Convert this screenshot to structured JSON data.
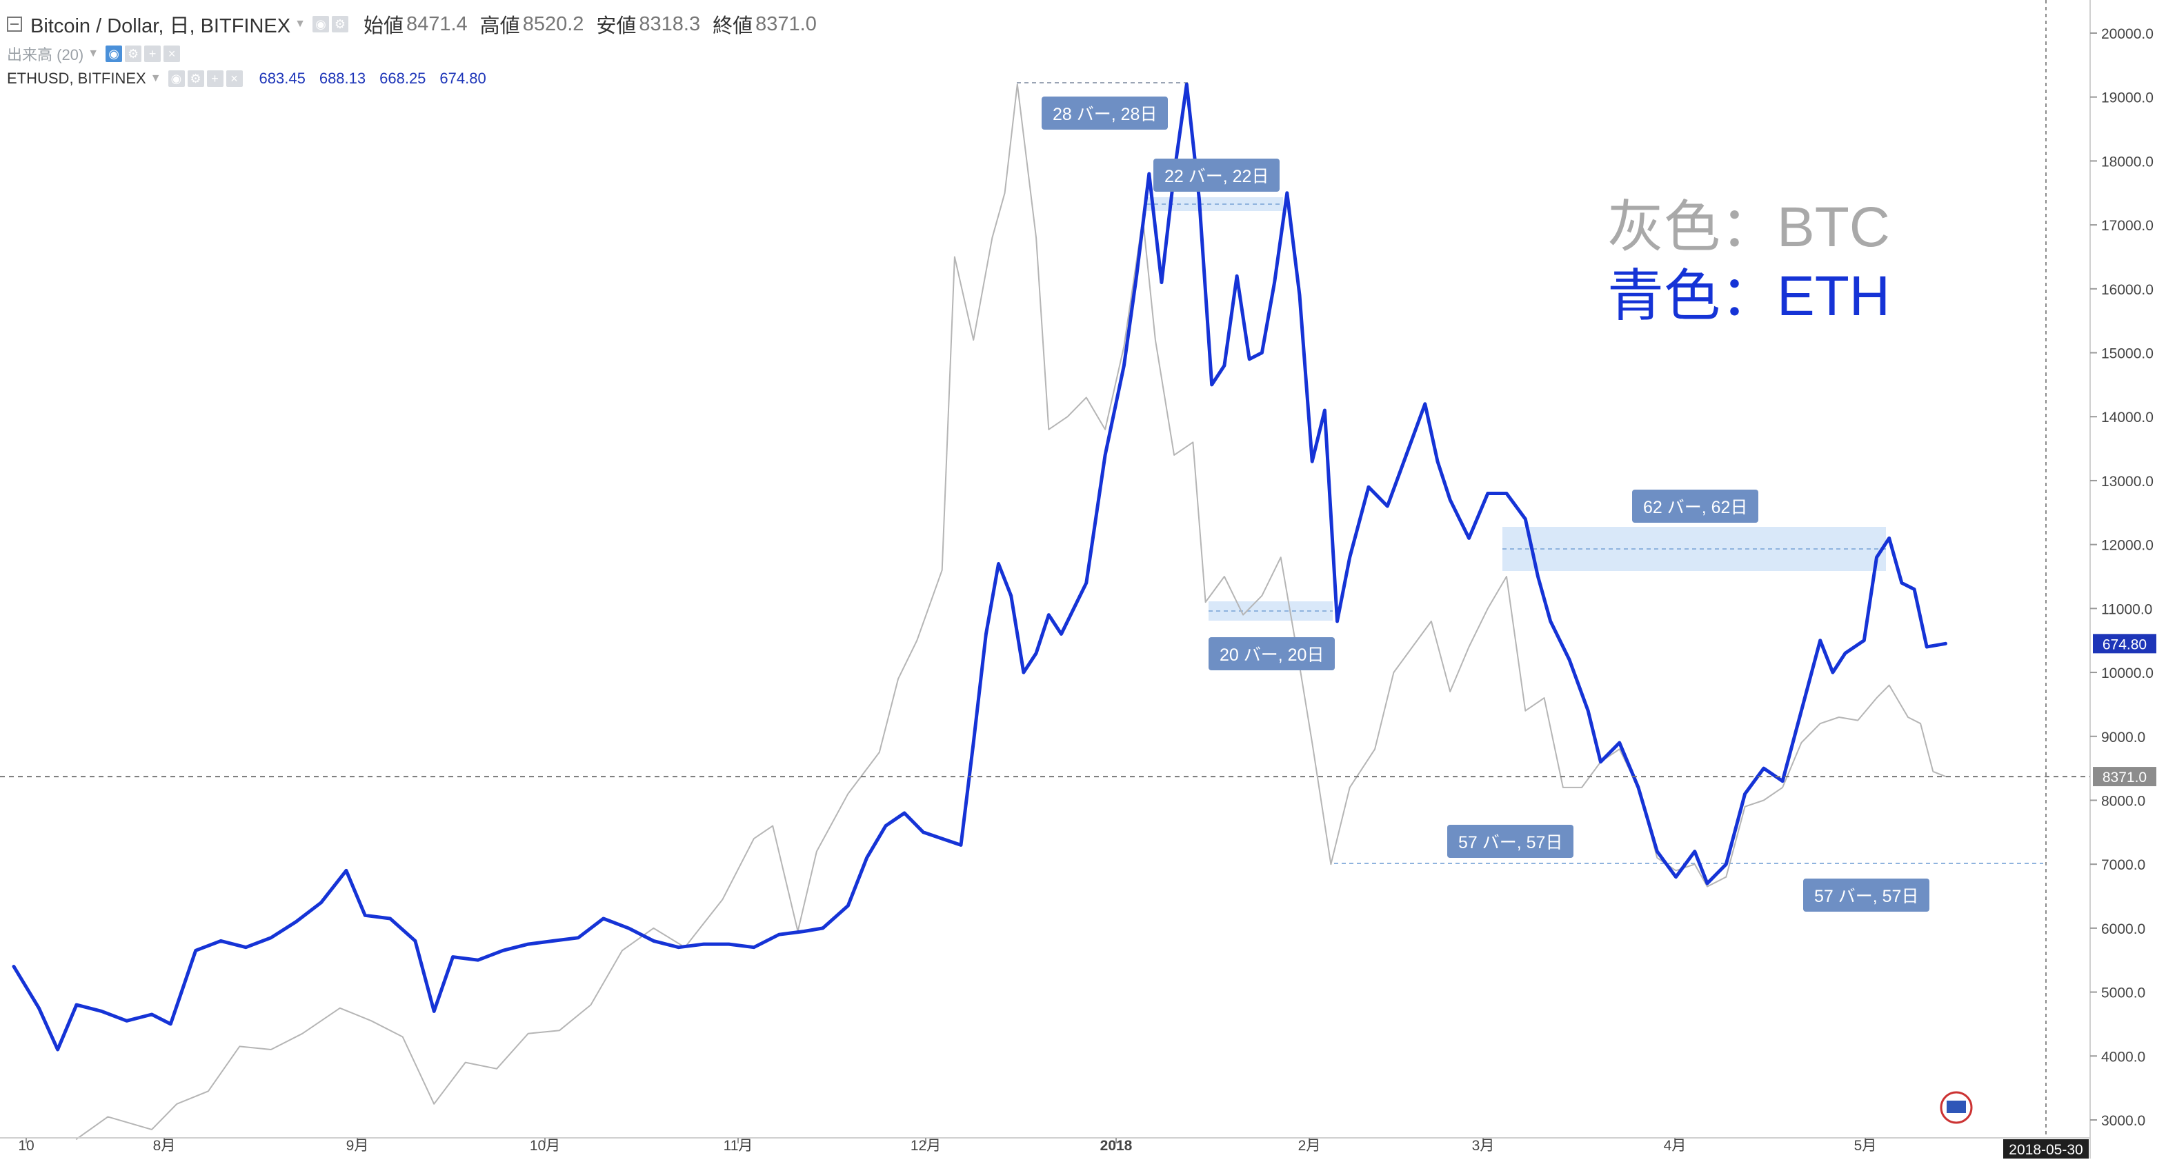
{
  "header": {
    "symbol_title": "Bitcoin / Dollar, 日, BITFINEX",
    "ohlc": [
      {
        "label": "始値",
        "value": "8471.4"
      },
      {
        "label": "高値",
        "value": "8520.2"
      },
      {
        "label": "安値",
        "value": "8318.3"
      },
      {
        "label": "終値",
        "value": "8371.0"
      }
    ],
    "volume_label": "出来高 (20)",
    "eth_symbol": "ETHUSD, BITFINEX",
    "eth_values": [
      "683.45",
      "688.13",
      "668.25",
      "674.80"
    ]
  },
  "legend": {
    "btc_label": "灰色：BTC",
    "eth_label": "青色：ETH"
  },
  "colors": {
    "btc_line": "#b5b5b5",
    "eth_line": "#1533d6",
    "measure_fill": "#cfe2f8",
    "tag_bg": "#6e8fc4",
    "price_tag_eth": "#1d35b8",
    "price_tag_btc": "#8c8c8c"
  },
  "price_tags": {
    "eth": "674.80",
    "btc": "8371.0"
  },
  "date_tag": "2018-05-30",
  "measurements": [
    {
      "label": "28 バー, 28日"
    },
    {
      "label": "22 バー, 22日"
    },
    {
      "label": "20 バー, 20日"
    },
    {
      "label": "62 バー, 62日"
    },
    {
      "label": "57 バー, 57日"
    },
    {
      "label": "57 バー, 57日"
    }
  ],
  "chart_data": {
    "type": "line",
    "x_labels": [
      "10",
      "8月",
      "9月",
      "10月",
      "11月",
      "12月",
      "2018",
      "2月",
      "3月",
      "4月",
      "5月"
    ],
    "y_ticks": [
      "3000.0",
      "4000.0",
      "5000.0",
      "6000.0",
      "7000.0",
      "8000.0",
      "9000.0",
      "10000.0",
      "11000.0",
      "12000.0",
      "13000.0",
      "14000.0",
      "15000.0",
      "16000.0",
      "17000.0",
      "18000.0",
      "19000.0",
      "20000.0"
    ],
    "ylim": [
      3000,
      20000
    ],
    "xlim": [
      "2017-07-10",
      "2018-05-30"
    ],
    "grid": false,
    "series": [
      {
        "name": "BTC",
        "points": [
          [
            "2017-07-20",
            2700
          ],
          [
            "2017-07-25",
            3050
          ],
          [
            "2017-08-01",
            2850
          ],
          [
            "2017-08-05",
            3250
          ],
          [
            "2017-08-10",
            3450
          ],
          [
            "2017-08-15",
            4150
          ],
          [
            "2017-08-20",
            4100
          ],
          [
            "2017-08-25",
            4350
          ],
          [
            "2017-08-31",
            4750
          ],
          [
            "2017-09-05",
            4550
          ],
          [
            "2017-09-10",
            4300
          ],
          [
            "2017-09-15",
            3250
          ],
          [
            "2017-09-20",
            3900
          ],
          [
            "2017-09-25",
            3800
          ],
          [
            "2017-09-30",
            4350
          ],
          [
            "2017-10-05",
            4400
          ],
          [
            "2017-10-10",
            4800
          ],
          [
            "2017-10-15",
            5650
          ],
          [
            "2017-10-20",
            6000
          ],
          [
            "2017-10-25",
            5700
          ],
          [
            "2017-10-31",
            6450
          ],
          [
            "2017-11-05",
            7400
          ],
          [
            "2017-11-08",
            7600
          ],
          [
            "2017-11-12",
            5950
          ],
          [
            "2017-11-15",
            7200
          ],
          [
            "2017-11-20",
            8100
          ],
          [
            "2017-11-25",
            8750
          ],
          [
            "2017-11-28",
            9900
          ],
          [
            "2017-12-01",
            10500
          ],
          [
            "2017-12-05",
            11600
          ],
          [
            "2017-12-07",
            16500
          ],
          [
            "2017-12-10",
            15200
          ],
          [
            "2017-12-13",
            16800
          ],
          [
            "2017-12-15",
            17500
          ],
          [
            "2017-12-17",
            19200
          ],
          [
            "2017-12-20",
            16800
          ],
          [
            "2017-12-22",
            13800
          ],
          [
            "2017-12-25",
            14000
          ],
          [
            "2017-12-28",
            14300
          ],
          [
            "2017-12-31",
            13800
          ],
          [
            "2018-01-03",
            15100
          ],
          [
            "2018-01-06",
            17100
          ],
          [
            "2018-01-08",
            15200
          ],
          [
            "2018-01-11",
            13400
          ],
          [
            "2018-01-14",
            13600
          ],
          [
            "2018-01-16",
            11100
          ],
          [
            "2018-01-19",
            11500
          ],
          [
            "2018-01-22",
            10900
          ],
          [
            "2018-01-25",
            11200
          ],
          [
            "2018-01-28",
            11800
          ],
          [
            "2018-01-31",
            10100
          ],
          [
            "2018-02-02",
            8900
          ],
          [
            "2018-02-05",
            7000
          ],
          [
            "2018-02-08",
            8200
          ],
          [
            "2018-02-12",
            8800
          ],
          [
            "2018-02-15",
            10000
          ],
          [
            "2018-02-18",
            10400
          ],
          [
            "2018-02-21",
            10800
          ],
          [
            "2018-02-24",
            9700
          ],
          [
            "2018-02-27",
            10400
          ],
          [
            "2018-03-02",
            11000
          ],
          [
            "2018-03-05",
            11500
          ],
          [
            "2018-03-08",
            9400
          ],
          [
            "2018-03-11",
            9600
          ],
          [
            "2018-03-14",
            8200
          ],
          [
            "2018-03-17",
            8200
          ],
          [
            "2018-03-20",
            8600
          ],
          [
            "2018-03-23",
            8800
          ],
          [
            "2018-03-26",
            8200
          ],
          [
            "2018-03-29",
            7100
          ],
          [
            "2018-04-01",
            6900
          ],
          [
            "2018-04-04",
            7000
          ],
          [
            "2018-04-06",
            6650
          ],
          [
            "2018-04-09",
            6800
          ],
          [
            "2018-04-12",
            7900
          ],
          [
            "2018-04-15",
            8000
          ],
          [
            "2018-04-18",
            8200
          ],
          [
            "2018-04-21",
            8900
          ],
          [
            "2018-04-24",
            9200
          ],
          [
            "2018-04-27",
            9300
          ],
          [
            "2018-04-30",
            9250
          ],
          [
            "2018-05-03",
            9600
          ],
          [
            "2018-05-05",
            9800
          ],
          [
            "2018-05-08",
            9300
          ],
          [
            "2018-05-10",
            9200
          ],
          [
            "2018-05-12",
            8450
          ],
          [
            "2018-05-14",
            8371
          ]
        ]
      },
      {
        "name": "ETH",
        "points": [
          [
            "2017-07-10",
            5400
          ],
          [
            "2017-07-14",
            4750
          ],
          [
            "2017-07-17",
            4100
          ],
          [
            "2017-07-20",
            4800
          ],
          [
            "2017-07-24",
            4700
          ],
          [
            "2017-07-28",
            4550
          ],
          [
            "2017-08-01",
            4650
          ],
          [
            "2017-08-04",
            4500
          ],
          [
            "2017-08-08",
            5650
          ],
          [
            "2017-08-12",
            5800
          ],
          [
            "2017-08-16",
            5700
          ],
          [
            "2017-08-20",
            5850
          ],
          [
            "2017-08-24",
            6100
          ],
          [
            "2017-08-28",
            6400
          ],
          [
            "2017-09-01",
            6900
          ],
          [
            "2017-09-04",
            6200
          ],
          [
            "2017-09-08",
            6150
          ],
          [
            "2017-09-12",
            5800
          ],
          [
            "2017-09-15",
            4700
          ],
          [
            "2017-09-18",
            5550
          ],
          [
            "2017-09-22",
            5500
          ],
          [
            "2017-09-26",
            5650
          ],
          [
            "2017-09-30",
            5750
          ],
          [
            "2017-10-04",
            5800
          ],
          [
            "2017-10-08",
            5850
          ],
          [
            "2017-10-12",
            6150
          ],
          [
            "2017-10-16",
            6000
          ],
          [
            "2017-10-20",
            5800
          ],
          [
            "2017-10-24",
            5700
          ],
          [
            "2017-10-28",
            5750
          ],
          [
            "2017-11-01",
            5750
          ],
          [
            "2017-11-05",
            5700
          ],
          [
            "2017-11-09",
            5900
          ],
          [
            "2017-11-13",
            5950
          ],
          [
            "2017-11-16",
            6000
          ],
          [
            "2017-11-20",
            6350
          ],
          [
            "2017-11-23",
            7100
          ],
          [
            "2017-11-26",
            7600
          ],
          [
            "2017-11-29",
            7800
          ],
          [
            "2017-12-02",
            7500
          ],
          [
            "2017-12-05",
            7400
          ],
          [
            "2017-12-08",
            7300
          ],
          [
            "2017-12-10",
            8900
          ],
          [
            "2017-12-12",
            10600
          ],
          [
            "2017-12-14",
            11700
          ],
          [
            "2017-12-16",
            11200
          ],
          [
            "2017-12-18",
            10000
          ],
          [
            "2017-12-20",
            10300
          ],
          [
            "2017-12-22",
            10900
          ],
          [
            "2017-12-24",
            10600
          ],
          [
            "2017-12-26",
            11000
          ],
          [
            "2017-12-28",
            11400
          ],
          [
            "2017-12-31",
            13400
          ],
          [
            "2018-01-03",
            14800
          ],
          [
            "2018-01-05",
            16200
          ],
          [
            "2018-01-07",
            17800
          ],
          [
            "2018-01-09",
            16100
          ],
          [
            "2018-01-11",
            17800
          ],
          [
            "2018-01-13",
            19200
          ],
          [
            "2018-01-15",
            17400
          ],
          [
            "2018-01-17",
            14500
          ],
          [
            "2018-01-19",
            14800
          ],
          [
            "2018-01-21",
            16200
          ],
          [
            "2018-01-23",
            14900
          ],
          [
            "2018-01-25",
            15000
          ],
          [
            "2018-01-27",
            16100
          ],
          [
            "2018-01-29",
            17500
          ],
          [
            "2018-01-31",
            15900
          ],
          [
            "2018-02-02",
            13300
          ],
          [
            "2018-02-04",
            14100
          ],
          [
            "2018-02-06",
            10800
          ],
          [
            "2018-02-08",
            11800
          ],
          [
            "2018-02-11",
            12900
          ],
          [
            "2018-02-14",
            12600
          ],
          [
            "2018-02-17",
            13400
          ],
          [
            "2018-02-20",
            14200
          ],
          [
            "2018-02-22",
            13300
          ],
          [
            "2018-02-24",
            12700
          ],
          [
            "2018-02-27",
            12100
          ],
          [
            "2018-03-02",
            12800
          ],
          [
            "2018-03-05",
            12800
          ],
          [
            "2018-03-08",
            12400
          ],
          [
            "2018-03-10",
            11500
          ],
          [
            "2018-03-12",
            10800
          ],
          [
            "2018-03-15",
            10200
          ],
          [
            "2018-03-18",
            9400
          ],
          [
            "2018-03-20",
            8600
          ],
          [
            "2018-03-23",
            8900
          ],
          [
            "2018-03-26",
            8200
          ],
          [
            "2018-03-29",
            7200
          ],
          [
            "2018-04-01",
            6800
          ],
          [
            "2018-04-04",
            7200
          ],
          [
            "2018-04-06",
            6700
          ],
          [
            "2018-04-09",
            7000
          ],
          [
            "2018-04-12",
            8100
          ],
          [
            "2018-04-15",
            8500
          ],
          [
            "2018-04-18",
            8300
          ],
          [
            "2018-04-21",
            9400
          ],
          [
            "2018-04-24",
            10500
          ],
          [
            "2018-04-26",
            10000
          ],
          [
            "2018-04-28",
            10300
          ],
          [
            "2018-05-01",
            10500
          ],
          [
            "2018-05-03",
            11800
          ],
          [
            "2018-05-05",
            12100
          ],
          [
            "2018-05-07",
            11400
          ],
          [
            "2018-05-09",
            11300
          ],
          [
            "2018-05-11",
            10400
          ],
          [
            "2018-05-14",
            10450
          ]
        ]
      }
    ]
  }
}
